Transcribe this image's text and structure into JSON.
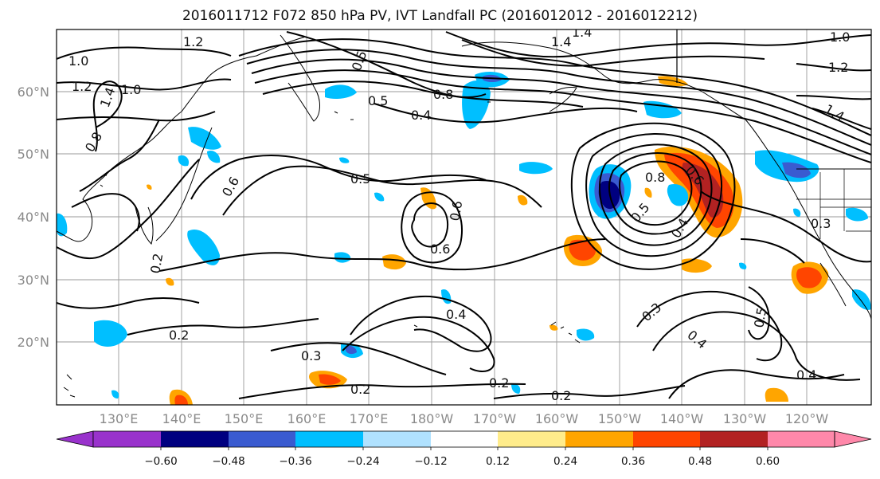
{
  "title": "2016011712 F072 850 hPa PV, IVT Landfall PC (2016012012 - 2016012212)",
  "lat_labels": [
    "60°N",
    "50°N",
    "40°N",
    "30°N",
    "20°N"
  ],
  "lon_labels": [
    "130°E",
    "140°E",
    "150°E",
    "160°E",
    "170°E",
    "180°W",
    "170°W",
    "160°W",
    "150°W",
    "140°W",
    "130°W",
    "120°W"
  ],
  "colorbar": {
    "ticks": [
      "−0.60",
      "−0.48",
      "−0.36",
      "−0.24",
      "−0.12",
      "0.12",
      "0.24",
      "0.36",
      "0.48",
      "0.60"
    ],
    "colors": [
      "#9932cc",
      "#000080",
      "#3a5bd0",
      "#00bfff",
      "#b0e2ff",
      "#ffffff",
      "#ffec8b",
      "#ffa500",
      "#ff4500",
      "#b22222",
      "#ff88aa"
    ]
  },
  "contour_labels": [
    "1.2",
    "1.0",
    "1.2",
    "1.0",
    "1.4",
    "0.8",
    "0.5",
    "0.5",
    "0.8",
    "0.4",
    "1.4",
    "1.4",
    "0.6",
    "0.5",
    "0.6",
    "0.6",
    "0.2",
    "0.2",
    "0.4",
    "0.3",
    "0.2",
    "0.2",
    "0.2",
    "0.3",
    "0.4",
    "0.5",
    "0.4",
    "0.4",
    "0.3",
    "1.0",
    "1.2",
    "1.4",
    "0.8",
    "0.5",
    "0.6"
  ],
  "shading_colors": {
    "neg_light": "#00bfff",
    "neg_mid": "#3a5bd0",
    "neg_strong": "#000080",
    "pos_light": "#ffec8b",
    "pos_mid": "#ffa500",
    "pos_strong": "#ff4500",
    "pos_max": "#b22222"
  }
}
